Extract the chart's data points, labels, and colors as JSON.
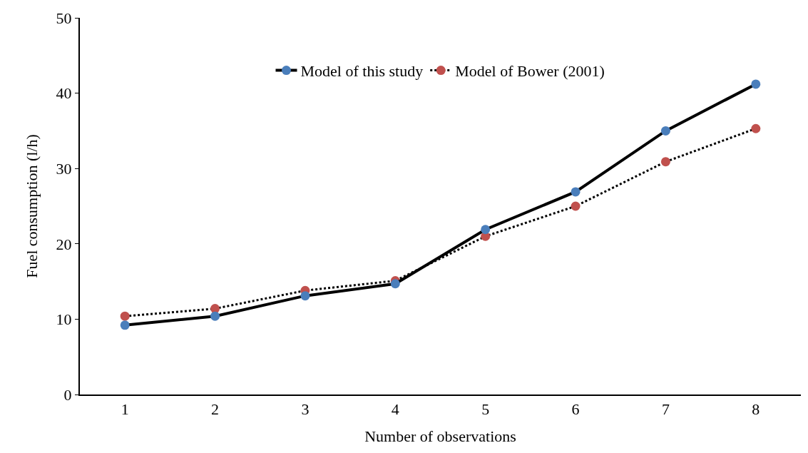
{
  "chart_data": {
    "type": "line",
    "xlabel": "Number of observations",
    "ylabel": "Fuel consumption (l/h)",
    "categories": [
      "1",
      "2",
      "3",
      "4",
      "5",
      "6",
      "7",
      "8"
    ],
    "series": [
      {
        "name": "Model of this study",
        "color": "#4a7ebb",
        "line_style": "solid",
        "values": [
          9.2,
          10.4,
          13.1,
          14.7,
          21.9,
          26.9,
          35.0,
          41.2
        ]
      },
      {
        "name": "Model of Bower (2001)",
        "color": "#c0504d",
        "line_style": "dotted",
        "values": [
          10.4,
          11.4,
          13.8,
          15.1,
          21.0,
          25.0,
          30.9,
          35.3
        ]
      }
    ],
    "ylim": [
      0,
      50
    ],
    "yticks": [
      0,
      10,
      20,
      30,
      40,
      50
    ],
    "grid": false,
    "legend": "top",
    "marker": "circle"
  }
}
